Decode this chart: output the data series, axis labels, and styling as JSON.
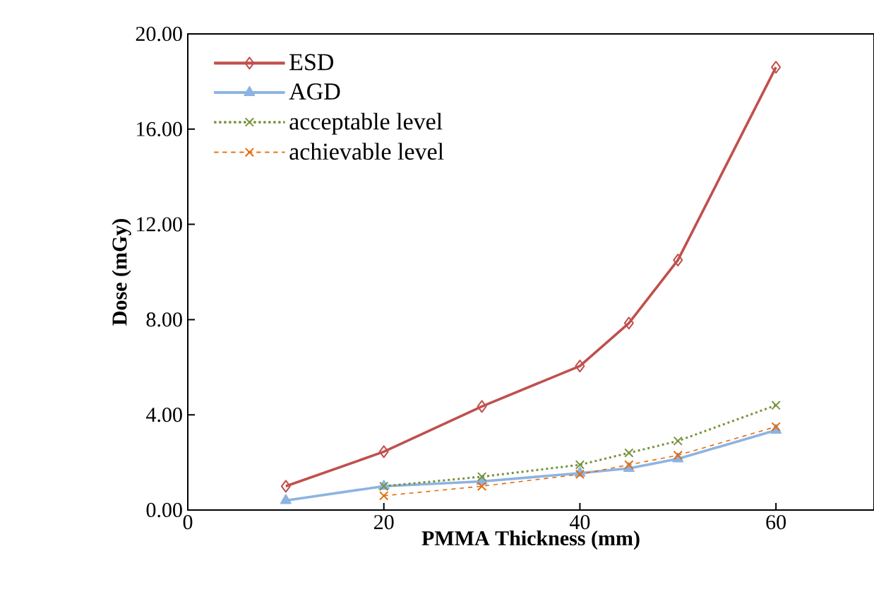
{
  "chart_data": {
    "type": "line",
    "xlabel": "PMMA Thickness (mm)",
    "ylabel": "Dose (mGy)",
    "xlim": [
      0,
      70
    ],
    "xticks": [
      0,
      20,
      40,
      60
    ],
    "ylim": [
      0,
      20
    ],
    "yticks": [
      {
        "value": 0,
        "label": "0.00"
      },
      {
        "value": 4,
        "label": "4.00"
      },
      {
        "value": 8,
        "label": "8.00"
      },
      {
        "value": 12,
        "label": "12.00"
      },
      {
        "value": 16,
        "label": "16.00"
      },
      {
        "value": 20,
        "label": "20.00"
      }
    ],
    "legend": "top left",
    "grid": false,
    "series": [
      {
        "name": "ESD",
        "color": "#c0504d",
        "marker": "diamond",
        "line_style": "solid",
        "x": [
          10,
          20,
          30,
          40,
          45,
          50,
          60
        ],
        "values": [
          1.0,
          2.45,
          4.35,
          6.05,
          7.85,
          10.5,
          18.6
        ]
      },
      {
        "name": "AGD",
        "color": "#8db3e2",
        "marker": "triangle",
        "line_style": "solid",
        "x": [
          10,
          20,
          30,
          40,
          45,
          50,
          60
        ],
        "values": [
          0.4,
          1.0,
          1.2,
          1.55,
          1.75,
          2.15,
          3.35
        ]
      },
      {
        "name": "acceptable level",
        "color": "#77933c",
        "marker": "cross",
        "line_style": "dotted",
        "x": [
          20,
          30,
          40,
          45,
          50,
          60
        ],
        "values": [
          1.0,
          1.4,
          1.9,
          2.4,
          2.9,
          4.4
        ]
      },
      {
        "name": "achievable level",
        "color": "#e46c0a",
        "marker": "cross",
        "line_style": "dashed",
        "x": [
          20,
          30,
          40,
          45,
          50,
          60
        ],
        "values": [
          0.6,
          1.0,
          1.5,
          1.9,
          2.3,
          3.5
        ]
      }
    ]
  }
}
